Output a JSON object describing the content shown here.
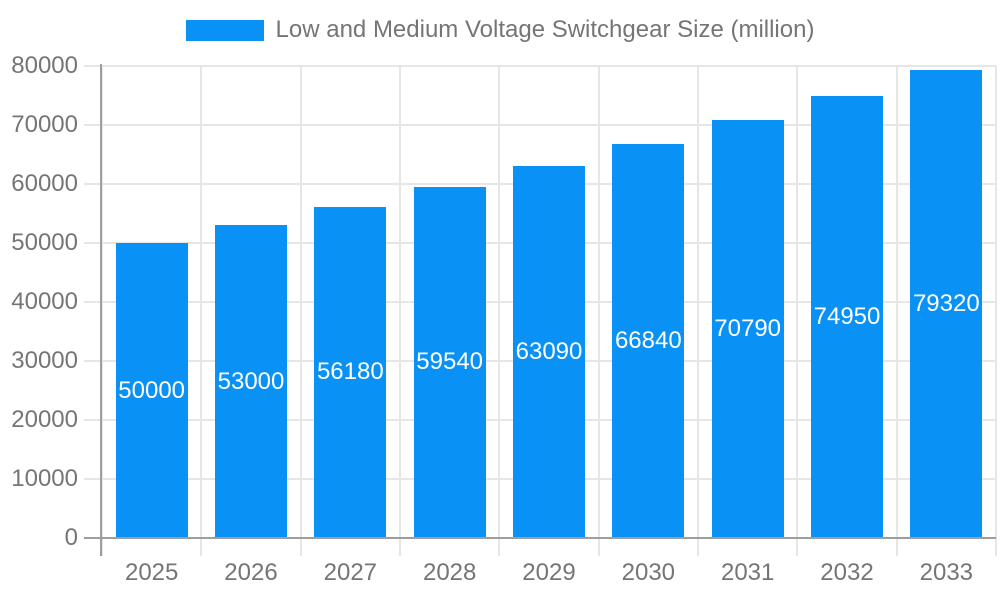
{
  "chart_data": {
    "type": "bar",
    "title": "",
    "categories": [
      "2025",
      "2026",
      "2027",
      "2028",
      "2029",
      "2030",
      "2031",
      "2032",
      "2033"
    ],
    "values": [
      50000,
      53000,
      56180,
      59540,
      63090,
      66840,
      70790,
      74950,
      79320
    ],
    "series_name": "Low and Medium Voltage Switchgear Size (million)",
    "xlabel": "",
    "ylabel": "",
    "ylim": [
      0,
      80000
    ],
    "yticks": [
      0,
      10000,
      20000,
      30000,
      40000,
      50000,
      60000,
      70000,
      80000
    ],
    "grid": true,
    "legend_position": "top-center",
    "bar_value_labels": "inside-center"
  },
  "legend": {
    "label": "Low and Medium Voltage Switchgear Size (million)"
  },
  "colors": {
    "bar": "#0991f5",
    "bar_label_text": "#ffffff",
    "axis_text": "#757575",
    "legend_text": "#757575",
    "grid_line": "#e6e6e6",
    "axis_line": "#9e9e9e",
    "background": "#ffffff"
  }
}
